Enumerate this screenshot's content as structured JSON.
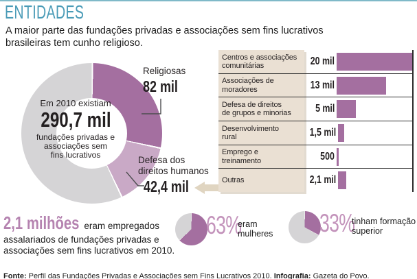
{
  "colors": {
    "purple": "#a46fa0",
    "lightpurple": "#c9a9c6",
    "gray": "#d5d4d6",
    "teal": "#4a9bb7",
    "rule": "#7fb9c8",
    "beige": "#eae0d3",
    "arrowbeige": "#e0d5c1",
    "numpurple": "#b583b0",
    "pctpurple": "#c393bb",
    "text": "#231f20"
  },
  "header": {
    "title": "ENTIDADES",
    "intro_line1": "A maior parte das fundações privadas e associações sem fins lucrativos",
    "intro_line2": "brasileiras tem cunho religioso."
  },
  "chart_data": [
    {
      "type": "pie",
      "subtype": "donut",
      "total": 290.7,
      "unit": "mil",
      "center": {
        "prefix": "Em 2010 existiam",
        "big": "290,7 mil",
        "sub1": "fundações privadas e",
        "sub2": "associações sem",
        "sub3": "fins lucrativos"
      },
      "segments": [
        {
          "label": "Religiosas",
          "value": 82.0,
          "display": "82 mil",
          "color": "#a46fa0"
        },
        {
          "label": "Defesa dos direitos humanos",
          "value": 42.4,
          "display": "42,4 mil",
          "color": "#c9a9c6"
        },
        {
          "label": "",
          "value": 166.3,
          "display": "",
          "color": "#d5d4d6"
        }
      ],
      "callouts": {
        "religiosas": {
          "label": "Religiosas",
          "value": "82 mil"
        },
        "defesa": {
          "line1": "Defesa dos",
          "line2": "direitos humanos",
          "value": "42,4 mil"
        }
      }
    },
    {
      "type": "bar",
      "orientation": "horizontal",
      "scale_max": 20000,
      "rows": [
        {
          "label": "Centros e associações comunitárias",
          "label_line1": "Centros e associações",
          "label_line2": "comunitárias",
          "value": "20 mil",
          "value_num": 20000
        },
        {
          "label": "Associações de moradores",
          "label_line1": "Associações de",
          "label_line2": "moradores",
          "value": "13 mil",
          "value_num": 13000
        },
        {
          "label": "Defesa de direitos de grupos e minorias",
          "label_line1": "Defesa de direitos",
          "label_line2": "de grupos e minorias",
          "value": "5 mil",
          "value_num": 5000
        },
        {
          "label": "Desenvolvimento rural",
          "label_line1": "Desenvolvimento",
          "label_line2": "rural",
          "value": "1,5 mil",
          "value_num": 1500
        },
        {
          "label": "Emprego e treinamento",
          "label_line1": "Emprego e",
          "label_line2": "treinamento",
          "value": "500",
          "value_num": 500
        },
        {
          "label": "Outras",
          "label_line1": "Outras",
          "label_line2": "",
          "value": "2,1 mil",
          "value_num": 2100
        }
      ]
    },
    {
      "type": "pie",
      "pct": 63,
      "pct_label": "63%",
      "desc_line1": "eram",
      "desc_line2": "mulheres",
      "color": "#a46fa0",
      "rest_color": "#d5d4d6"
    },
    {
      "type": "pie",
      "pct": 33,
      "pct_label": "33%",
      "desc_line1": "tinham formação",
      "desc_line2": "superior",
      "color": "#a46fa0",
      "rest_color": "#d5d4d6"
    }
  ],
  "employment": {
    "big": "2,1 milhões",
    "line1_rest": "eram empregados",
    "line2": "assalariados de  fundações privadas e",
    "line3": "associações sem fins lucrativos em 2010."
  },
  "footer": {
    "source_label": "Fonte:",
    "source_text": " Perfil das Fundações Privadas e Associações sem Fins Lucrativos 2010. ",
    "credit_label": "Infografia:",
    "credit_text": " Gazeta do Povo."
  }
}
